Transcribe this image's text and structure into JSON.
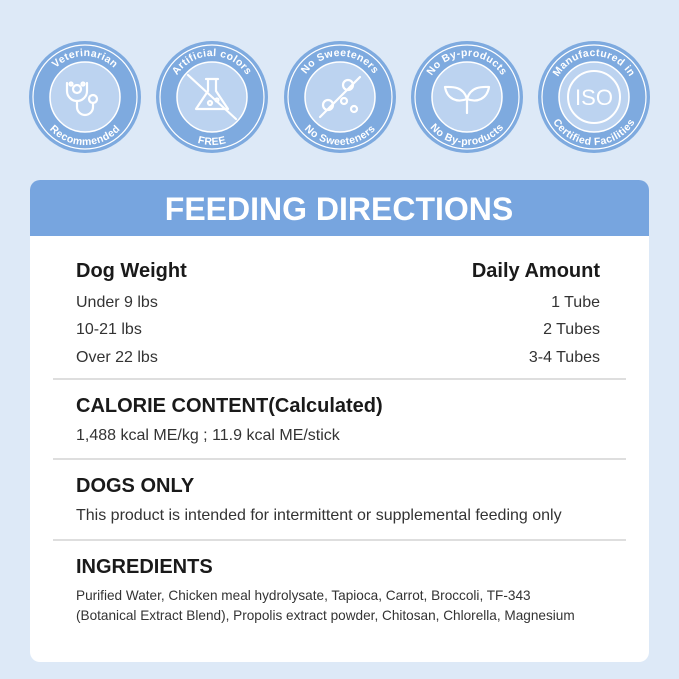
{
  "badges": [
    {
      "top": "Veterinarian",
      "bottom": "Recommended"
    },
    {
      "top": "Artificial colors",
      "bottom": "FREE"
    },
    {
      "top": "No Sweeteners",
      "bottom": "No Sweeteners"
    },
    {
      "top": "No By-products",
      "bottom": "No By-products"
    },
    {
      "top": "Manufactured in",
      "bottom": "Certified Facilities",
      "center": "ISO"
    }
  ],
  "card": {
    "title": "FEEDING DIRECTIONS",
    "table": {
      "headers": [
        "Dog Weight",
        "Daily Amount"
      ],
      "rows": [
        [
          "Under 9 lbs",
          "1 Tube"
        ],
        [
          "10-21 lbs",
          "2 Tubes"
        ],
        [
          "Over 22 lbs",
          "3-4 Tubes"
        ]
      ]
    },
    "calorie": {
      "heading": "CALORIE CONTENT(Calculated)",
      "text": "1,488 kcal ME/kg ; 11.9 kcal ME/stick"
    },
    "dogs_only": {
      "heading": "DOGS ONLY",
      "text": "This product is intended for intermittent or supplemental feeding only"
    },
    "ingredients": {
      "heading": "INGREDIENTS",
      "lines": [
        "Purified Water, Chicken meal hydrolysate, Tapioca, Carrot, Broccoli, TF-343",
        "(Botanical Extract Blend), Propolis extract powder, Chitosan, Chlorella, Magnesium"
      ]
    }
  }
}
